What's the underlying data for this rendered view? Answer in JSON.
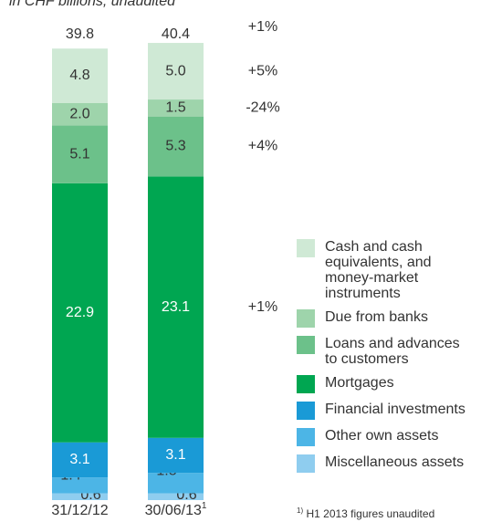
{
  "chart_data": {
    "type": "stacked-bar",
    "title": "in CHF billions, unaudited",
    "categories": [
      "31/12/12",
      "30/06/13"
    ],
    "category_superscripts": [
      null,
      "1"
    ],
    "totals": [
      39.8,
      40.4
    ],
    "total_change_label": "+1%",
    "ylim": [
      0,
      40
    ],
    "series": [
      {
        "name": "Miscellaneous assets",
        "color": "#8fcdef",
        "values": [
          0.6,
          0.6
        ]
      },
      {
        "name": "Other own assets",
        "color": "#4cb5e6",
        "values": [
          1.4,
          1.8
        ]
      },
      {
        "name": "Financial investments",
        "color": "#1a9ad6",
        "values": [
          3.1,
          3.1
        ]
      },
      {
        "name": "Mortgages",
        "color": "#00a651",
        "values": [
          22.9,
          23.1
        ],
        "change_label": "+1%"
      },
      {
        "name": "Loans and advances to customers",
        "color": "#6cc18a",
        "values": [
          5.1,
          5.3
        ],
        "change_label": "+4%"
      },
      {
        "name": "Due from banks",
        "color": "#9ed4ab",
        "values": [
          2.0,
          1.5
        ],
        "value_labels": [
          "2.0",
          "1.5"
        ],
        "change_label": "-24%"
      },
      {
        "name": "Cash and cash equivalents, and money-market instruments",
        "color": "#cfe9d5",
        "values": [
          4.8,
          5.0
        ],
        "value_labels": [
          "4.8",
          "5.0"
        ],
        "change_label": "+5%"
      }
    ],
    "footnote": {
      "mark": "1)",
      "text": "H1 2013 figures unaudited"
    }
  }
}
